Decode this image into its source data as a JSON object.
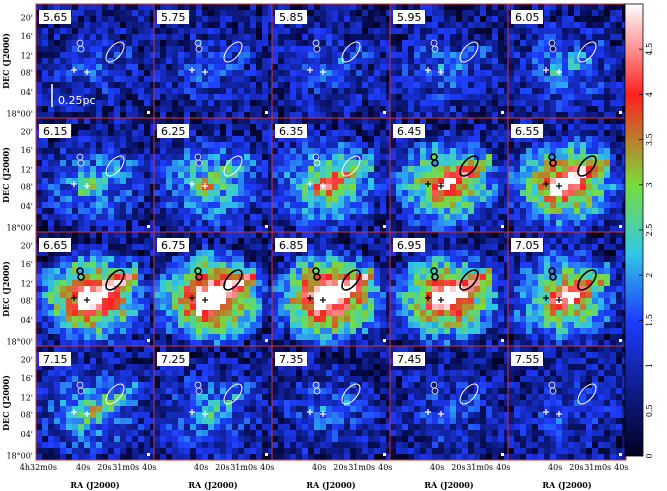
{
  "chart_data": {
    "type": "heatmap",
    "panels": [
      {
        "label": "5.65",
        "intensity": 0.12
      },
      {
        "label": "5.75",
        "intensity": 0.13
      },
      {
        "label": "5.85",
        "intensity": 0.15
      },
      {
        "label": "5.95",
        "intensity": 0.18
      },
      {
        "label": "6.05",
        "intensity": 0.22
      },
      {
        "label": "6.15",
        "intensity": 0.3
      },
      {
        "label": "6.25",
        "intensity": 0.4
      },
      {
        "label": "6.35",
        "intensity": 0.55
      },
      {
        "label": "6.45",
        "intensity": 0.7
      },
      {
        "label": "6.55",
        "intensity": 0.82
      },
      {
        "label": "6.65",
        "intensity": 0.9
      },
      {
        "label": "6.75",
        "intensity": 1.0
      },
      {
        "label": "6.85",
        "intensity": 1.0
      },
      {
        "label": "6.95",
        "intensity": 0.88
      },
      {
        "label": "7.05",
        "intensity": 0.7
      },
      {
        "label": "7.15",
        "intensity": 0.35
      },
      {
        "label": "7.25",
        "intensity": 0.25
      },
      {
        "label": "7.35",
        "intensity": 0.18
      },
      {
        "label": "7.45",
        "intensity": 0.14
      },
      {
        "label": "7.55",
        "intensity": 0.12
      }
    ],
    "scale_bar_label": "0.25pc",
    "xlabel": "RA (J2000)",
    "ylabel": "DEC (J2000)",
    "y_ticks": [
      "20'",
      "16'",
      "12'",
      "08'",
      "04'",
      "18°00'"
    ],
    "x_ticks_first": [
      "4h32m0s",
      "40s",
      "20s",
      "31m0s",
      "40s"
    ],
    "x_ticks_other": [
      "40s",
      "20s",
      "31m0s",
      "40s"
    ],
    "colorbar": {
      "range": [
        0,
        5
      ],
      "ticks": [
        "0",
        "0.5",
        "1",
        "1.5",
        "2",
        "2.5",
        "3",
        "3.5",
        "4",
        "4.5"
      ]
    },
    "colors": {
      "panel_border": "#cc3333",
      "low": "#000020",
      "mid_blue": "#1e3cff",
      "cyan": "#32c8e6",
      "green": "#78dc3c",
      "red": "#ff2020",
      "high": "#ffffff"
    }
  }
}
